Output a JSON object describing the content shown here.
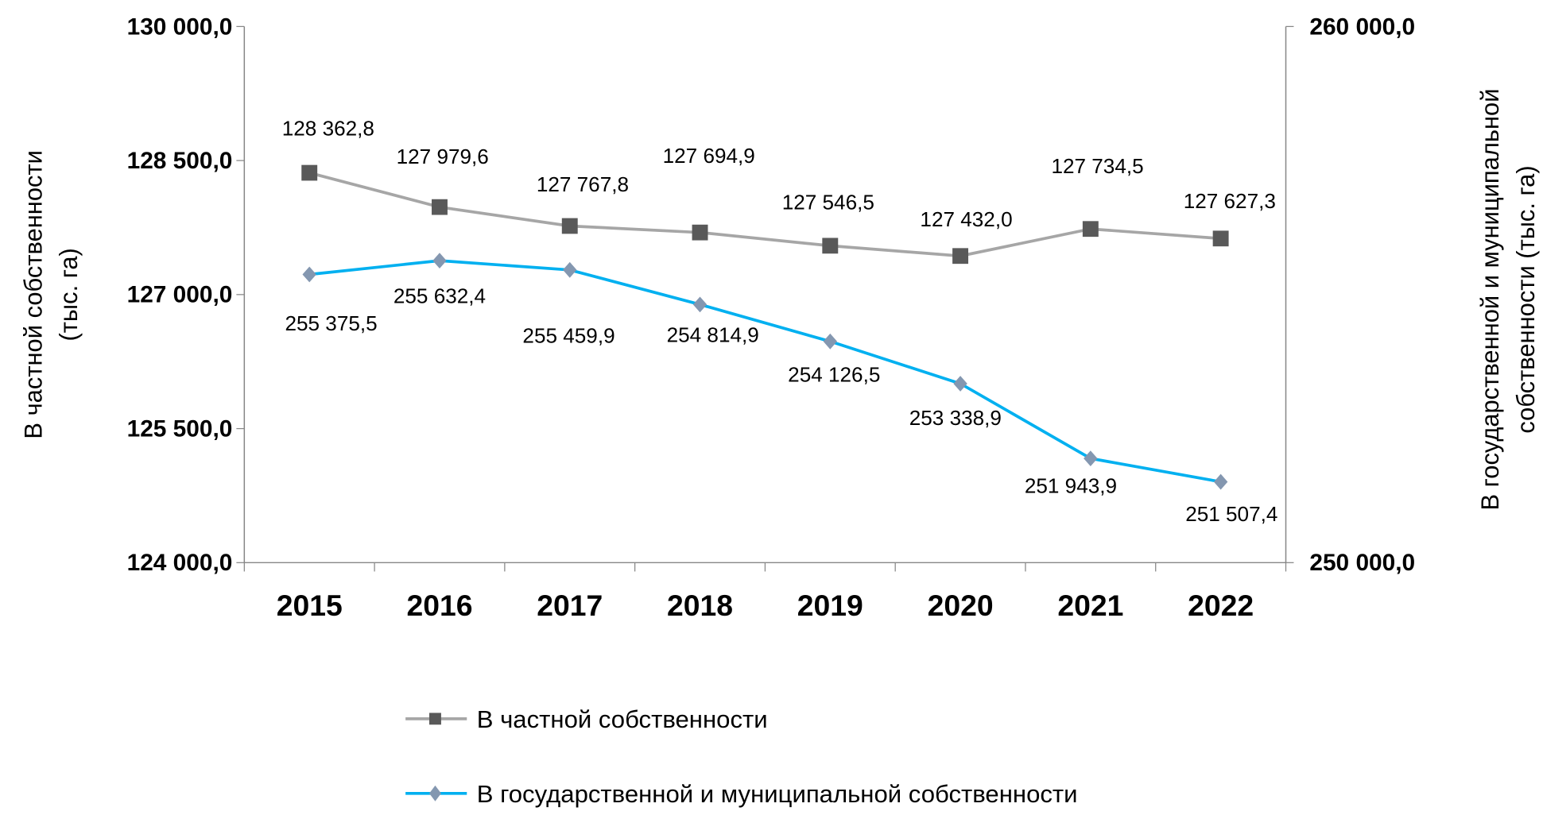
{
  "chart_data": {
    "type": "line",
    "title": "",
    "categories": [
      "2015",
      "2016",
      "2017",
      "2018",
      "2019",
      "2020",
      "2021",
      "2022"
    ],
    "series": [
      {
        "name": "В частной собственности",
        "axis": "left",
        "color": "#a6a6a6",
        "marker": "square",
        "marker_color": "#595959",
        "values": [
          128362.8,
          127979.6,
          127767.8,
          127694.9,
          127546.5,
          127432.0,
          127734.5,
          127627.3
        ],
        "labels": [
          "128 362,8",
          "127 979,6",
          "127 767,8",
          "127 694,9",
          "127 546,5",
          "127 432,0",
          "127 734,5",
          "127 627,3"
        ]
      },
      {
        "name": "В государственной и муниципальной собственности",
        "axis": "right",
        "color": "#00b0f0",
        "marker": "diamond",
        "marker_color": "#8497b0",
        "values": [
          255375.5,
          255632.4,
          255459.9,
          254814.9,
          254126.5,
          253338.9,
          251943.9,
          251507.4
        ],
        "labels": [
          "255 375,5",
          "255 632,4",
          "255 459,9",
          "254 814,9",
          "254 126,5",
          "253 338,9",
          "251 943,9",
          "251 507,4"
        ]
      }
    ],
    "ylabel": "В частной собственности (тыс. га)",
    "ylabel_lines": [
      "В частной собственности",
      "(тыс. га)"
    ],
    "y2label": "В государственной и муниципальной собственности (тыс. га)",
    "y2label_lines": [
      "В государственной и муниципальной",
      "собственности (тыс. га)"
    ],
    "ylim": [
      124000,
      130000
    ],
    "y2lim": [
      250000,
      260000
    ],
    "yticks": [
      "124 000,0",
      "125 500,0",
      "127 000,0",
      "128 500,0",
      "130 000,0"
    ],
    "y2ticks": [
      "250 000,0",
      "260 000,0"
    ],
    "grid": false,
    "legend_position": "bottom"
  }
}
